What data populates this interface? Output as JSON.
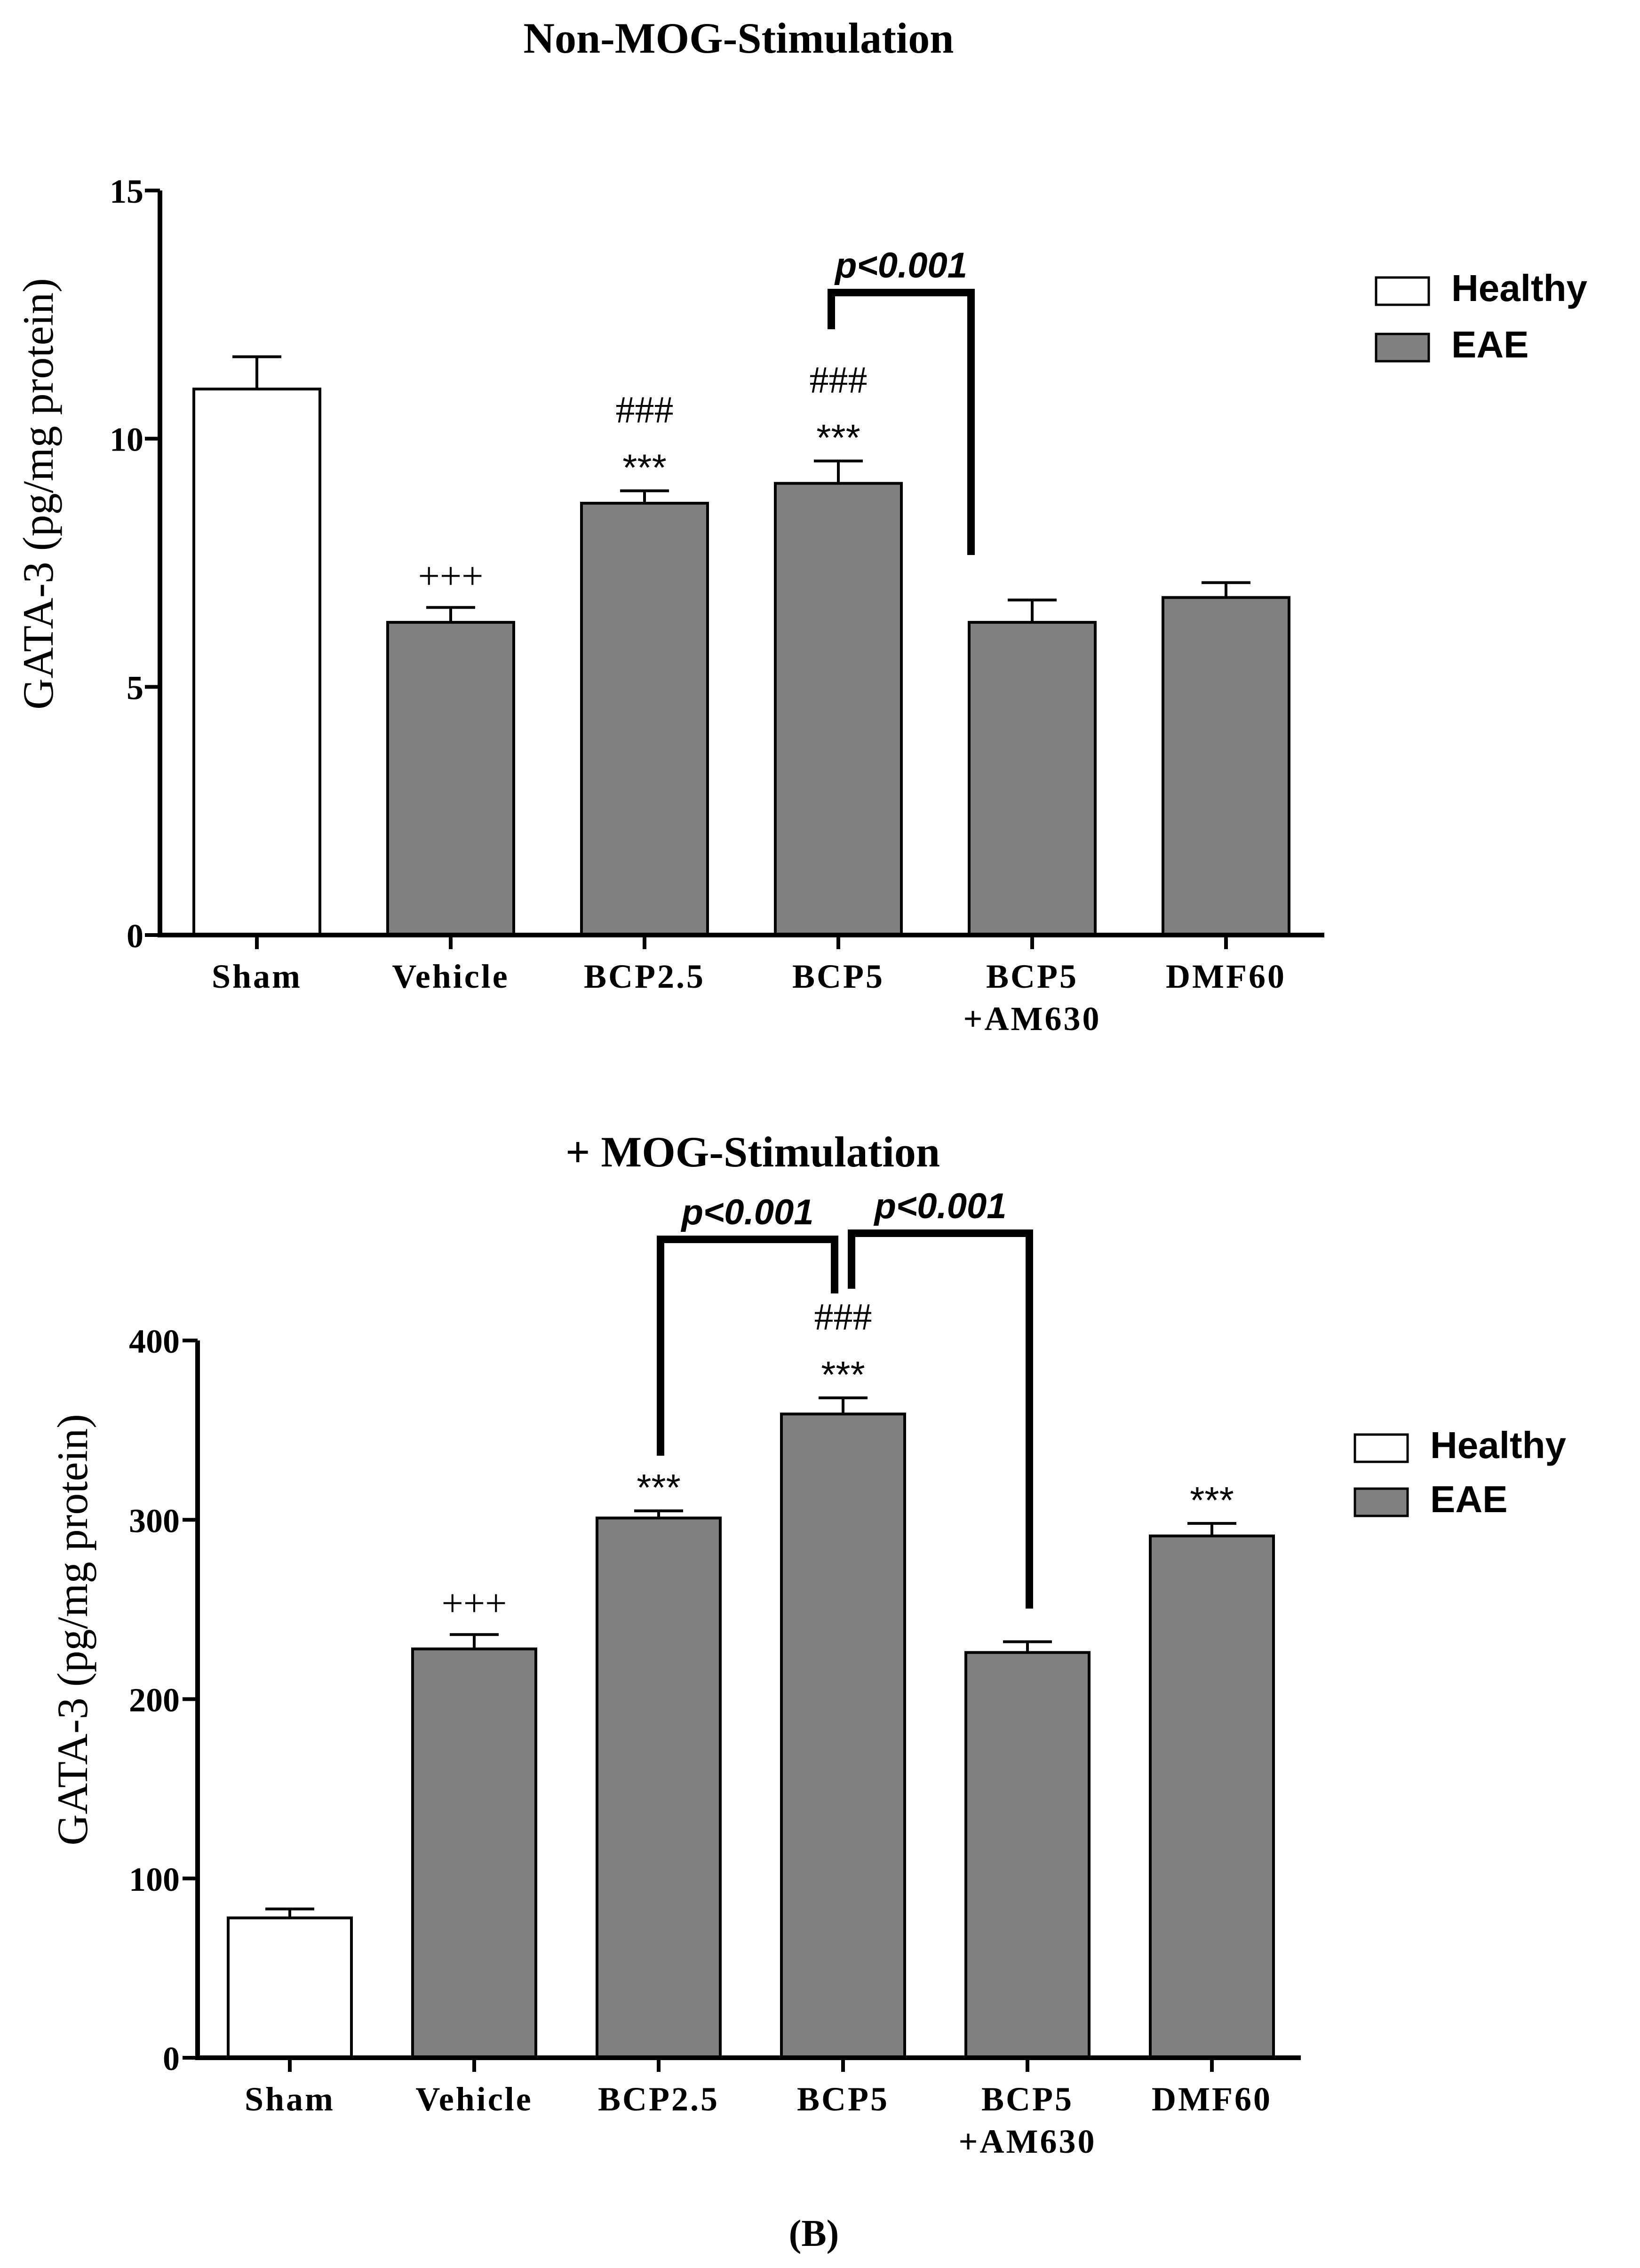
{
  "chart_data": [
    {
      "type": "bar",
      "title": "Non-MOG-Stimulation",
      "ylabel": "GATA-3 (pg/mg protein)",
      "xlabel": "",
      "ylim": [
        0,
        15
      ],
      "yticks": [
        "0",
        "5",
        "10",
        "15"
      ],
      "categories": [
        [
          "Sham"
        ],
        [
          "Vehicle"
        ],
        [
          "BCP2.5"
        ],
        [
          "BCP5"
        ],
        [
          "BCP5",
          "+AM630"
        ],
        [
          "DMF60"
        ]
      ],
      "values": [
        11.0,
        6.3,
        8.7,
        9.1,
        6.3,
        6.8
      ],
      "errors": [
        0.65,
        0.3,
        0.25,
        0.45,
        0.45,
        0.3
      ],
      "groups": [
        "Healthy",
        "EAE",
        "EAE",
        "EAE",
        "EAE",
        "EAE"
      ],
      "annotations": [
        {
          "bar": 1,
          "lines": [
            "+++"
          ]
        },
        {
          "bar": 2,
          "lines": [
            "###",
            "***"
          ]
        },
        {
          "bar": 3,
          "lines": [
            "###",
            "***"
          ]
        }
      ],
      "brackets": [
        {
          "from": 3,
          "to": 4,
          "label": "p<0.001"
        }
      ],
      "legend": {
        "position": "top-right",
        "entries": [
          {
            "label": "Healthy",
            "color": "#ffffff"
          },
          {
            "label": "EAE",
            "color": "#808080"
          }
        ]
      },
      "grid": false
    },
    {
      "type": "bar",
      "title": "+ MOG-Stimulation",
      "ylabel": "GATA-3 (pg/mg protein)",
      "xlabel": "",
      "ylim": [
        0,
        400
      ],
      "yticks": [
        "0",
        "100",
        "200",
        "300",
        "400"
      ],
      "categories": [
        [
          "Sham"
        ],
        [
          "Vehicle"
        ],
        [
          "BCP2.5"
        ],
        [
          "BCP5"
        ],
        [
          "BCP5",
          "+AM630"
        ],
        [
          "DMF60"
        ]
      ],
      "values": [
        78,
        228,
        301,
        359,
        226,
        291
      ],
      "errors": [
        5,
        8,
        4,
        9,
        6,
        7
      ],
      "groups": [
        "Healthy",
        "EAE",
        "EAE",
        "EAE",
        "EAE",
        "EAE"
      ],
      "annotations": [
        {
          "bar": 1,
          "lines": [
            "+++"
          ]
        },
        {
          "bar": 2,
          "lines": [
            "***"
          ]
        },
        {
          "bar": 3,
          "lines": [
            "###",
            "***"
          ]
        },
        {
          "bar": 5,
          "lines": [
            "***"
          ]
        }
      ],
      "brackets": [
        {
          "from": 2,
          "to": 3,
          "label": "p<0.001"
        },
        {
          "from": 3,
          "to": 4,
          "label": "p<0.001"
        }
      ],
      "legend": {
        "position": "top-right",
        "entries": [
          {
            "label": "Healthy",
            "color": "#ffffff"
          },
          {
            "label": "EAE",
            "color": "#808080"
          }
        ]
      },
      "grid": false
    }
  ],
  "panel_label": "(B)",
  "colors": {
    "healthy": "#ffffff",
    "eae": "#808080",
    "ink": "#000000"
  }
}
